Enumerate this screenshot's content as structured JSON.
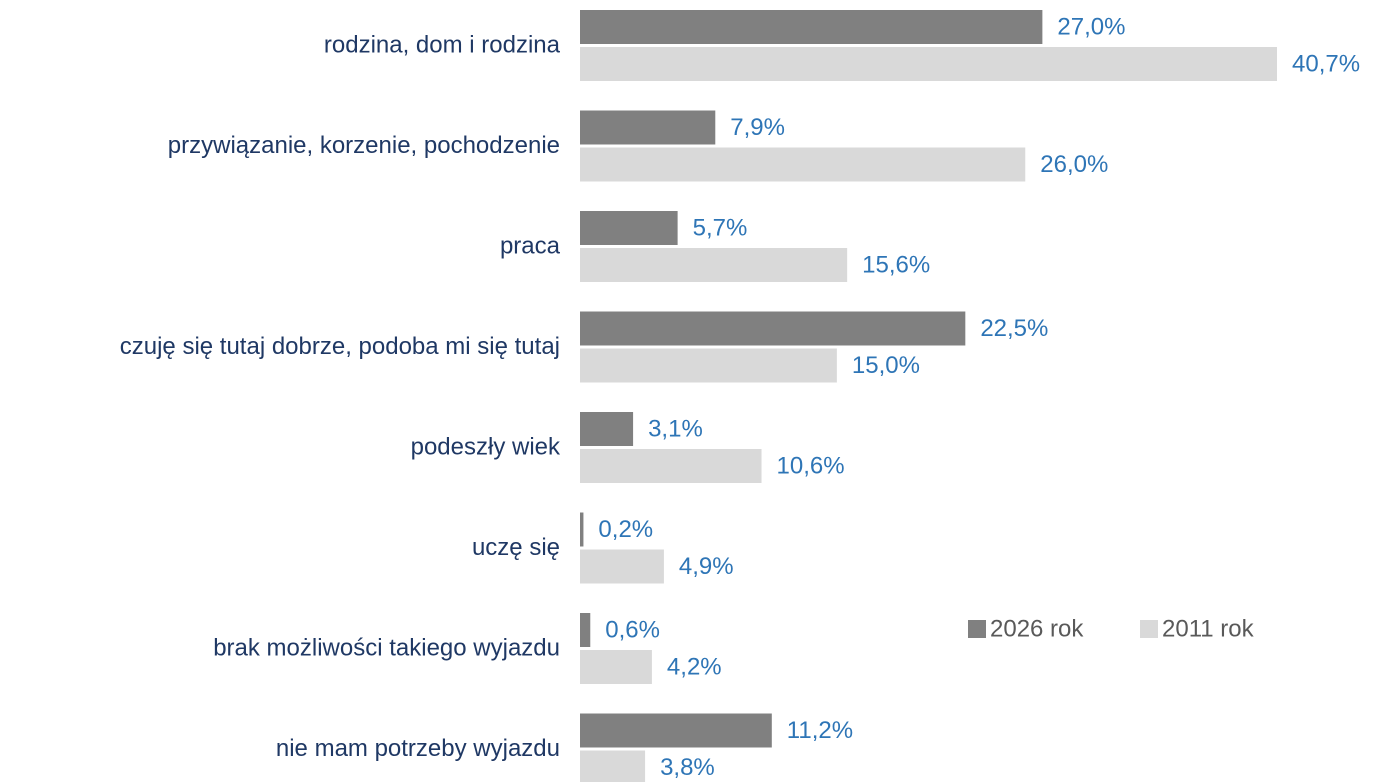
{
  "chart_data": {
    "type": "bar",
    "orientation": "horizontal",
    "categories": [
      "rodzina, dom i rodzina",
      "przywiązanie, korzenie, pochodzenie",
      "praca",
      "czuję się tutaj dobrze, podoba mi się tutaj",
      "podeszły wiek",
      "uczę się",
      "brak możliwości takiego wyjazdu",
      "nie mam potrzeby wyjazdu"
    ],
    "series": [
      {
        "name": "2026 rok",
        "color": "#808080",
        "values": [
          27.0,
          7.9,
          5.7,
          22.5,
          3.1,
          0.2,
          0.6,
          11.2
        ],
        "value_labels": [
          "27,0%",
          "7,9%",
          "5,7%",
          "22,5%",
          "3,1%",
          "0,2%",
          "0,6%",
          "11,2%"
        ]
      },
      {
        "name": "2011 rok",
        "color": "#d9d9d9",
        "values": [
          40.7,
          26.0,
          15.6,
          15.0,
          10.6,
          4.9,
          4.2,
          3.8
        ],
        "value_labels": [
          "40,7%",
          "26,0%",
          "15,6%",
          "15,0%",
          "10,6%",
          "4,9%",
          "4,2%",
          "3,8%"
        ]
      }
    ]
  }
}
